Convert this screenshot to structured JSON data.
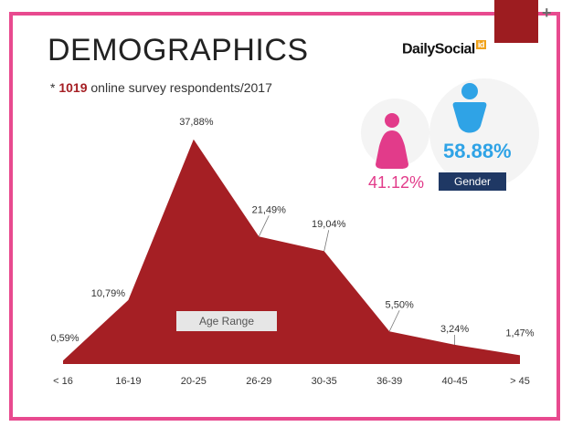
{
  "header": {
    "title": "DEMOGRAPHICS",
    "subtitle_prefix": "* ",
    "subtitle_highlight": "1019",
    "subtitle_suffix": " online survey respondents/2017",
    "logo_text": "DailySocial",
    "logo_sup": "id"
  },
  "gender": {
    "female_pct": "41.12%",
    "male_pct": "58.88%",
    "label": "Gender",
    "female_color": "#e23b8a",
    "male_color": "#2fa3e6"
  },
  "age_range_label": "Age Range",
  "colors": {
    "accent": "#a51f24",
    "frame": "#e84a8f",
    "label_box": "#1f3864"
  },
  "chart_data": {
    "type": "area",
    "title": "",
    "xlabel": "Age Range",
    "ylabel": "",
    "ylim": [
      0,
      40
    ],
    "categories": [
      "< 16",
      "16-19",
      "20-25",
      "26-29",
      "30-35",
      "36-39",
      "40-45",
      "> 45"
    ],
    "values": [
      0.59,
      10.79,
      37.88,
      21.49,
      19.04,
      5.5,
      3.24,
      1.47
    ],
    "data_labels": [
      "0,59%",
      "10,79%",
      "37,88%",
      "21,49%",
      "19,04%",
      "5,50%",
      "3,24%",
      "1,47%"
    ],
    "grid": false,
    "legend": "none"
  }
}
